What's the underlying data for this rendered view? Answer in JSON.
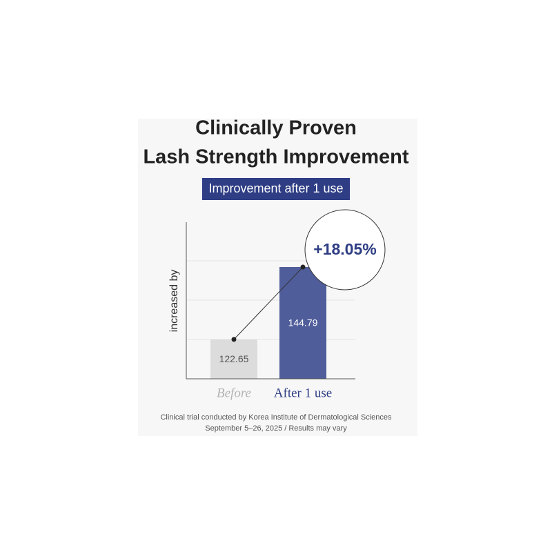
{
  "chart_data": {
    "type": "bar",
    "title": [
      "Clinically Proven",
      "Lash Strength Improvement"
    ],
    "subtitle": "Improvement after 1 use",
    "y_label": "increased by",
    "categories": [
      "Before",
      "After 1 use"
    ],
    "values": [
      122.65,
      144.79
    ],
    "colors": [
      "#dcdcdc",
      "#4f5d9a"
    ],
    "label_colors": [
      "#b3b3b3",
      "#2e3d84"
    ],
    "ylim": [
      110.6,
      158.5
    ],
    "annotation": "+18.05%",
    "footnote": [
      "Clinical trial conducted by Korea Institute of Dermatological Sciences",
      "September 5–26, 2025 / Results may vary"
    ]
  }
}
